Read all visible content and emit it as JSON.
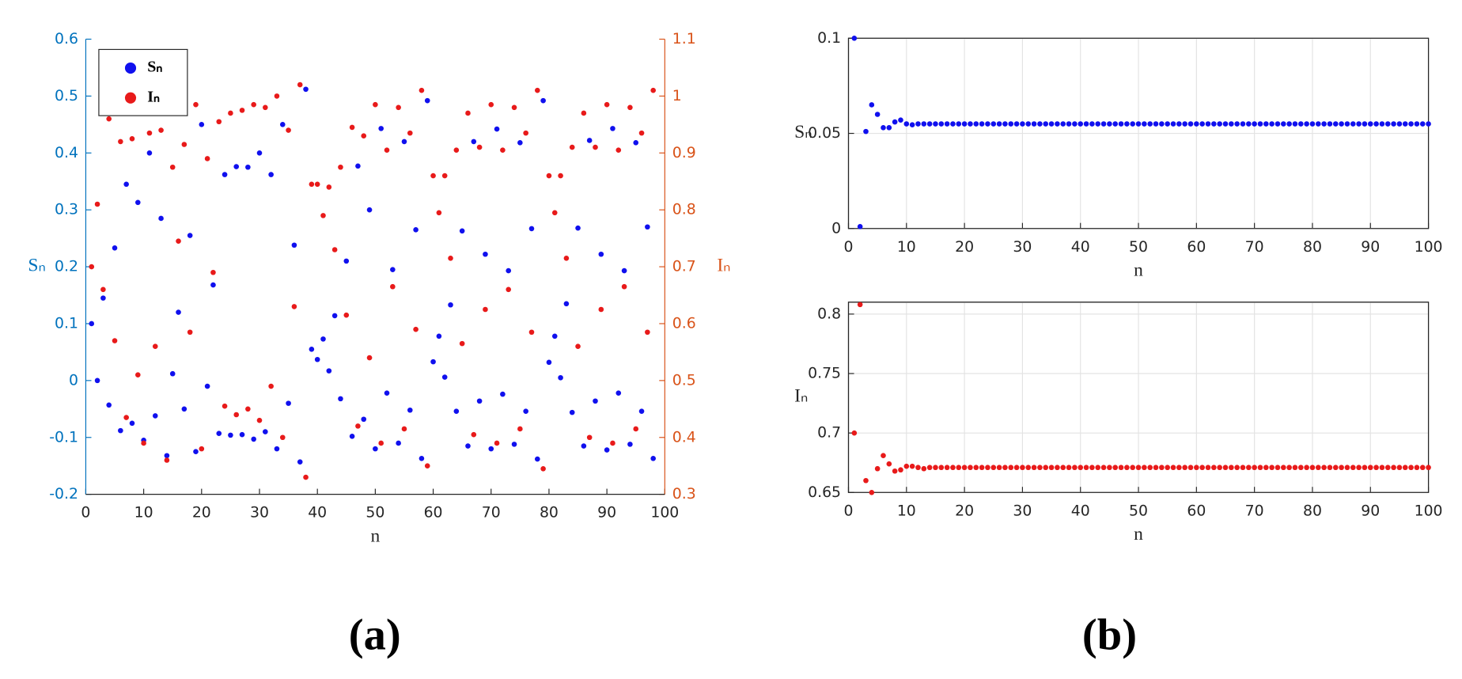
{
  "chart_data": [
    {
      "type": "scatter",
      "panel_label": "(a)",
      "xlabel": "n",
      "ylabel": "Sₙ",
      "y2label": "Iₙ",
      "xlim": [
        0,
        100
      ],
      "xticks": [
        0,
        10,
        20,
        30,
        40,
        50,
        60,
        70,
        80,
        90,
        100
      ],
      "ylim": [
        -0.2,
        0.6
      ],
      "yticks": [
        -0.2,
        -0.1,
        0,
        0.1,
        0.2,
        0.3,
        0.4,
        0.5,
        0.6
      ],
      "y2lim": [
        0.3,
        1.1
      ],
      "y2ticks": [
        0.3,
        0.4,
        0.5,
        0.6,
        0.7,
        0.8,
        0.9,
        1,
        1.1
      ],
      "ycolor": "#0072bd",
      "y2color": "#d95319",
      "grid": false,
      "legend": "upper left",
      "x": [
        1,
        2,
        3,
        4,
        5,
        6,
        7,
        8,
        9,
        10,
        11,
        12,
        13,
        14,
        15,
        16,
        17,
        18,
        19,
        20,
        21,
        22,
        23,
        24,
        25,
        26,
        27,
        28,
        29,
        30,
        31,
        32,
        33,
        34,
        35,
        36,
        37,
        38,
        39,
        40,
        41,
        42,
        43,
        44,
        45,
        46,
        47,
        48,
        49,
        50,
        51,
        52,
        53,
        54,
        55,
        56,
        57,
        58,
        59,
        60,
        61,
        62,
        63,
        64,
        65,
        66,
        67,
        68,
        69,
        70,
        71,
        72,
        73,
        74,
        75,
        76,
        77,
        78,
        79,
        80,
        81,
        82,
        83,
        84,
        85,
        86,
        87,
        88,
        89,
        90,
        91,
        92,
        93,
        94,
        95,
        96,
        97,
        98
      ],
      "series": [
        {
          "name": "Sₙ",
          "color": "#1010ee",
          "values": [
            0.1,
            0,
            0.145,
            -0.043,
            0.233,
            -0.088,
            0.345,
            -0.075,
            0.313,
            -0.105,
            0.4,
            -0.062,
            0.285,
            -0.132,
            0.012,
            0.12,
            -0.05,
            0.255,
            -0.125,
            0.45,
            -0.01,
            0.168,
            -0.093,
            0.362,
            -0.096,
            0.376,
            -0.095,
            0.375,
            -0.103,
            0.4,
            -0.09,
            0.362,
            -0.12,
            0.45,
            -0.04,
            0.238,
            -0.143,
            0.512,
            0.055,
            0.037,
            0.073,
            0.017,
            0.114,
            -0.032,
            0.21,
            -0.098,
            0.377,
            -0.068,
            0.3,
            -0.12,
            0.443,
            -0.022,
            0.195,
            -0.11,
            0.42,
            -0.052,
            0.265,
            -0.137,
            0.492,
            0.033,
            0.078,
            0.006,
            0.133,
            -0.054,
            0.263,
            -0.115,
            0.42,
            -0.036,
            0.222,
            -0.12,
            0.442,
            -0.024,
            0.193,
            -0.112,
            0.418,
            -0.054,
            0.267,
            -0.138,
            0.492,
            0.032,
            0.078,
            0.005,
            0.135,
            -0.056,
            0.268,
            -0.115,
            0.422,
            -0.036,
            0.222,
            -0.122,
            0.443,
            -0.022,
            0.193,
            -0.112,
            0.418,
            -0.054,
            0.27,
            -0.137
          ]
        },
        {
          "name": "Iₙ",
          "color": "#e81a1a",
          "axis": "y2",
          "values": [
            0.7,
            0.81,
            0.66,
            0.96,
            0.57,
            0.92,
            0.435,
            0.925,
            0.51,
            0.39,
            0.935,
            0.56,
            0.94,
            0.36,
            0.875,
            0.745,
            0.915,
            0.585,
            0.985,
            0.38,
            0.89,
            0.69,
            0.955,
            0.455,
            0.97,
            0.44,
            0.975,
            0.45,
            0.985,
            0.43,
            0.98,
            0.49,
            1.0,
            0.4,
            0.94,
            0.63,
            1.02,
            0.33,
            0.845,
            0.845,
            0.79,
            0.84,
            0.73,
            0.875,
            0.615,
            0.945,
            0.42,
            0.93,
            0.54,
            0.985,
            0.39,
            0.905,
            0.665,
            0.98,
            0.415,
            0.935,
            0.59,
            1.01,
            0.35,
            0.86,
            0.795,
            0.86,
            0.715,
            0.905,
            0.565,
            0.97,
            0.405,
            0.91,
            0.625,
            0.985,
            0.39,
            0.905,
            0.66,
            0.98,
            0.415,
            0.935,
            0.585,
            1.01,
            0.345,
            0.86,
            0.795,
            0.86,
            0.715,
            0.91,
            0.56,
            0.97,
            0.4,
            0.91,
            0.625,
            0.985,
            0.39,
            0.905,
            0.665,
            0.98,
            0.415,
            0.935,
            0.585,
            1.01
          ]
        }
      ]
    },
    {
      "type": "scatter",
      "panel_label": "(b)",
      "xlabel": "n",
      "ylabel": "Sₙ",
      "xlim": [
        0,
        100
      ],
      "xticks": [
        0,
        10,
        20,
        30,
        40,
        50,
        60,
        70,
        80,
        90,
        100
      ],
      "ylim": [
        0,
        0.1
      ],
      "yticks": [
        0,
        0.05,
        0.1
      ],
      "grid": true,
      "x": [
        1,
        2,
        3,
        4,
        5,
        6,
        7,
        8,
        9,
        10,
        11,
        12,
        13,
        14,
        15,
        16,
        17,
        18,
        19,
        20,
        21,
        22,
        23,
        24,
        25,
        26,
        27,
        28,
        29,
        30,
        31,
        32,
        33,
        34,
        35,
        36,
        37,
        38,
        39,
        40,
        41,
        42,
        43,
        44,
        45,
        46,
        47,
        48,
        49,
        50,
        51,
        52,
        53,
        54,
        55,
        56,
        57,
        58,
        59,
        60,
        61,
        62,
        63,
        64,
        65,
        66,
        67,
        68,
        69,
        70,
        71,
        72,
        73,
        74,
        75,
        76,
        77,
        78,
        79,
        80,
        81,
        82,
        83,
        84,
        85,
        86,
        87,
        88,
        89,
        90,
        91,
        92,
        93,
        94,
        95,
        96,
        97,
        98,
        99,
        100
      ],
      "series": [
        {
          "color": "#1010ee",
          "values": [
            0.1,
            0.001,
            0.051,
            0.065,
            0.06,
            0.053,
            0.053,
            0.056,
            0.057,
            0.055,
            0.0545,
            0.055,
            0.055,
            0.055,
            0.055,
            0.055,
            0.055,
            0.055,
            0.055,
            0.055,
            0.055,
            0.055,
            0.055,
            0.055,
            0.055,
            0.055,
            0.055,
            0.055,
            0.055,
            0.055,
            0.055,
            0.055,
            0.055,
            0.055,
            0.055,
            0.055,
            0.055,
            0.055,
            0.055,
            0.055,
            0.055,
            0.055,
            0.055,
            0.055,
            0.055,
            0.055,
            0.055,
            0.055,
            0.055,
            0.055,
            0.055,
            0.055,
            0.055,
            0.055,
            0.055,
            0.055,
            0.055,
            0.055,
            0.055,
            0.055,
            0.055,
            0.055,
            0.055,
            0.055,
            0.055,
            0.055,
            0.055,
            0.055,
            0.055,
            0.055,
            0.055,
            0.055,
            0.055,
            0.055,
            0.055,
            0.055,
            0.055,
            0.055,
            0.055,
            0.055,
            0.055,
            0.055,
            0.055,
            0.055,
            0.055,
            0.055,
            0.055,
            0.055,
            0.055,
            0.055,
            0.055,
            0.055,
            0.055,
            0.055,
            0.055,
            0.055,
            0.055,
            0.055,
            0.055,
            0.055
          ]
        }
      ]
    },
    {
      "type": "scatter",
      "xlabel": "n",
      "ylabel": "Iₙ",
      "xlim": [
        0,
        100
      ],
      "xticks": [
        0,
        10,
        20,
        30,
        40,
        50,
        60,
        70,
        80,
        90,
        100
      ],
      "ylim": [
        0.65,
        0.81
      ],
      "yticks": [
        0.65,
        0.7,
        0.75,
        0.8
      ],
      "grid": true,
      "x": [
        1,
        2,
        3,
        4,
        5,
        6,
        7,
        8,
        9,
        10,
        11,
        12,
        13,
        14,
        15,
        16,
        17,
        18,
        19,
        20,
        21,
        22,
        23,
        24,
        25,
        26,
        27,
        28,
        29,
        30,
        31,
        32,
        33,
        34,
        35,
        36,
        37,
        38,
        39,
        40,
        41,
        42,
        43,
        44,
        45,
        46,
        47,
        48,
        49,
        50,
        51,
        52,
        53,
        54,
        55,
        56,
        57,
        58,
        59,
        60,
        61,
        62,
        63,
        64,
        65,
        66,
        67,
        68,
        69,
        70,
        71,
        72,
        73,
        74,
        75,
        76,
        77,
        78,
        79,
        80,
        81,
        82,
        83,
        84,
        85,
        86,
        87,
        88,
        89,
        90,
        91,
        92,
        93,
        94,
        95,
        96,
        97,
        98,
        99,
        100
      ],
      "series": [
        {
          "color": "#e81a1a",
          "values": [
            0.7,
            0.808,
            0.66,
            0.65,
            0.67,
            0.681,
            0.674,
            0.668,
            0.669,
            0.672,
            0.672,
            0.671,
            0.67,
            0.671,
            0.671,
            0.671,
            0.671,
            0.671,
            0.671,
            0.671,
            0.671,
            0.671,
            0.671,
            0.671,
            0.671,
            0.671,
            0.671,
            0.671,
            0.671,
            0.671,
            0.671,
            0.671,
            0.671,
            0.671,
            0.671,
            0.671,
            0.671,
            0.671,
            0.671,
            0.671,
            0.671,
            0.671,
            0.671,
            0.671,
            0.671,
            0.671,
            0.671,
            0.671,
            0.671,
            0.671,
            0.671,
            0.671,
            0.671,
            0.671,
            0.671,
            0.671,
            0.671,
            0.671,
            0.671,
            0.671,
            0.671,
            0.671,
            0.671,
            0.671,
            0.671,
            0.671,
            0.671,
            0.671,
            0.671,
            0.671,
            0.671,
            0.671,
            0.671,
            0.671,
            0.671,
            0.671,
            0.671,
            0.671,
            0.671,
            0.671,
            0.671,
            0.671,
            0.671,
            0.671,
            0.671,
            0.671,
            0.671,
            0.671,
            0.671,
            0.671,
            0.671,
            0.671,
            0.671,
            0.671,
            0.671,
            0.671,
            0.671,
            0.671,
            0.671,
            0.671
          ]
        }
      ]
    }
  ]
}
